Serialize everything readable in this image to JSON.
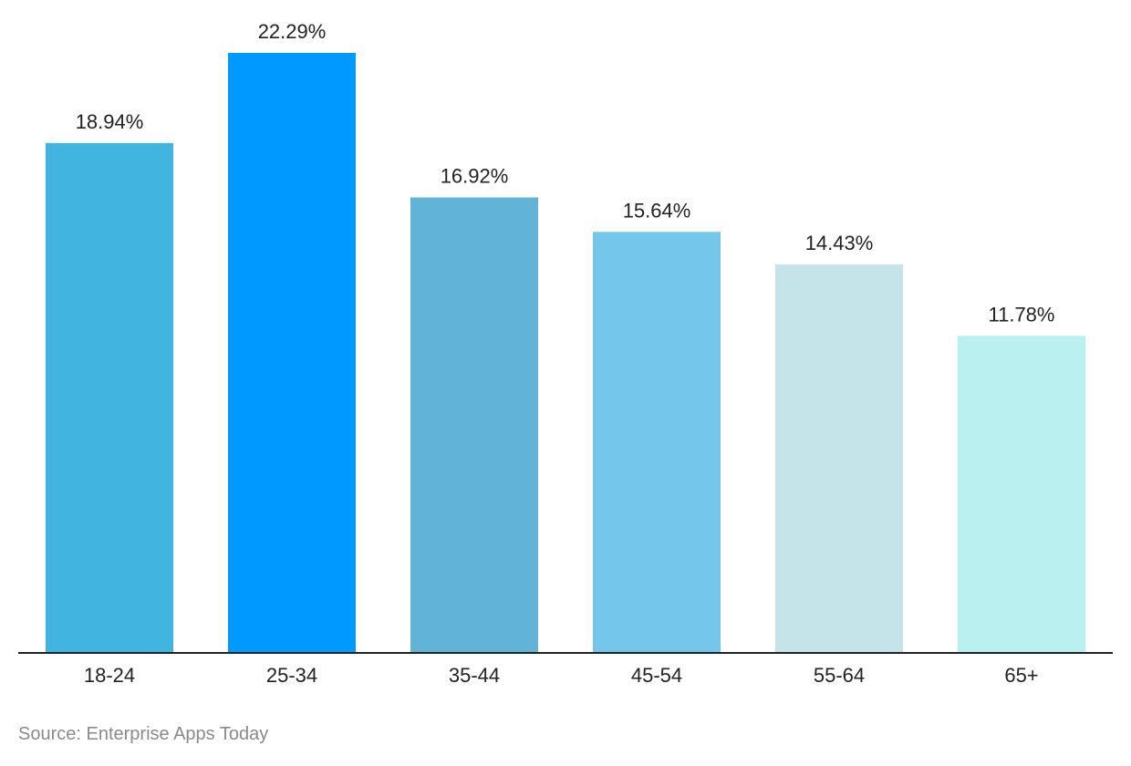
{
  "source": "Source: Enterprise Apps Today",
  "chart_data": {
    "type": "bar",
    "categories": [
      "18-24",
      "25-34",
      "35-44",
      "45-54",
      "55-64",
      "65+"
    ],
    "values": [
      18.94,
      22.29,
      16.92,
      15.64,
      14.43,
      11.78
    ],
    "value_labels": [
      "18.94%",
      "22.29%",
      "16.92%",
      "15.64%",
      "14.43%",
      "11.78%"
    ],
    "colors": [
      "#41b5e0",
      "#0099ff",
      "#61b3d8",
      "#74c6ea",
      "#c5e4ea",
      "#baf0f0"
    ],
    "baseline_color": "#222222",
    "title": "",
    "xlabel": "",
    "ylabel": "",
    "ylim": [
      0,
      22.29
    ],
    "grid": false,
    "legend": "none"
  }
}
